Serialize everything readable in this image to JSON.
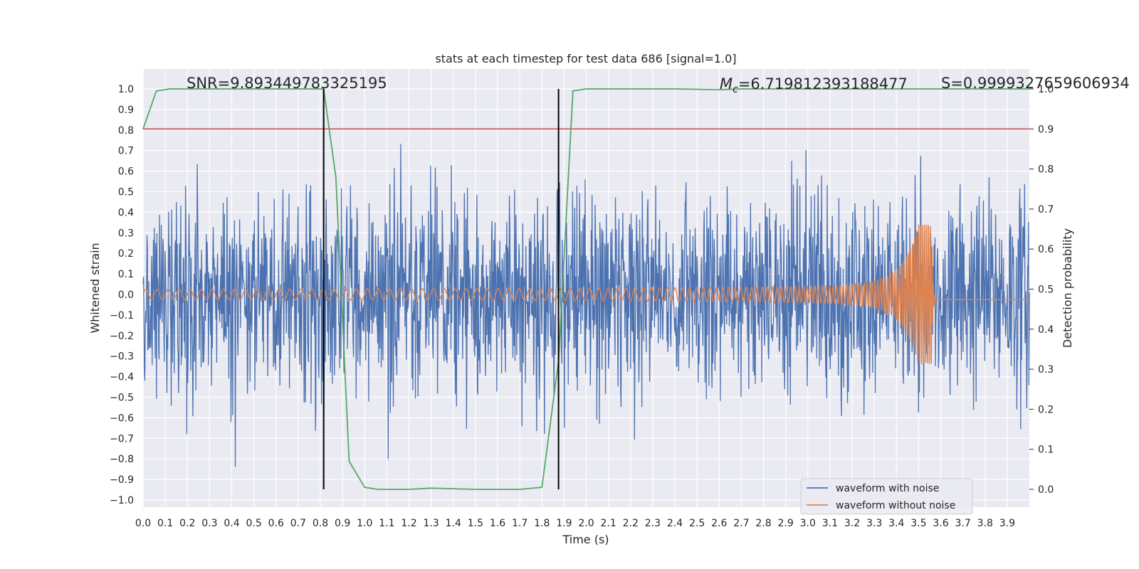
{
  "chart_data": {
    "type": "line",
    "title": "stats at each timestep for test data 686 [signal=1.0]",
    "xlabel": "Time (s)",
    "ylabel": "Whitened strain",
    "y2label": "Detection probability",
    "xlim": [
      0.0,
      4.0
    ],
    "ylim": [
      -1.05,
      1.1
    ],
    "y2lim": [
      -0.05,
      1.0
    ],
    "x_ticks": [
      "0.0",
      "0.1",
      "0.2",
      "0.3",
      "0.4",
      "0.5",
      "0.6",
      "0.7",
      "0.8",
      "0.9",
      "1.0",
      "1.1",
      "1.2",
      "1.3",
      "1.4",
      "1.5",
      "1.6",
      "1.7",
      "1.8",
      "1.9",
      "2.0",
      "2.1",
      "2.2",
      "2.3",
      "2.4",
      "2.5",
      "2.6",
      "2.7",
      "2.8",
      "2.9",
      "3.0",
      "3.1",
      "3.2",
      "3.3",
      "3.4",
      "3.5",
      "3.6",
      "3.7",
      "3.8",
      "3.9"
    ],
    "y_ticks": [
      "1.0",
      "0.9",
      "0.8",
      "0.7",
      "0.6",
      "0.5",
      "0.4",
      "0.3",
      "0.2",
      "0.1",
      "0.0",
      "−0.1",
      "−0.2",
      "−0.3",
      "−0.4",
      "−0.5",
      "−0.6",
      "−0.7",
      "−0.8",
      "−0.9",
      "−1.0"
    ],
    "y2_ticks": [
      "1.0",
      "0.9",
      "0.8",
      "0.7",
      "0.6",
      "0.5",
      "0.4",
      "0.3",
      "0.2",
      "0.1",
      "0.0"
    ],
    "annotations": {
      "snr": "SNR=9.893449783325195",
      "mc_symbol": "M",
      "mc_sub": "c",
      "mc_value": "=6.719812393188477",
      "s": "S=0.9999327659606934"
    },
    "legend": {
      "location": "lower right",
      "entries": [
        "waveform with noise",
        "waveform without noise"
      ]
    },
    "threshold": 0.9,
    "vlines": [
      0.815,
      1.875
    ],
    "series": [
      {
        "name": "waveform with noise",
        "color": "#4c72b0",
        "axis": "left",
        "noise_std": 0.25,
        "samples": 2048,
        "spike_max": 1.0
      },
      {
        "name": "waveform without noise",
        "color": "#dd8452",
        "axis": "left",
        "merger_time": 3.56,
        "base_amplitude": 0.025,
        "peak_amplitude": 0.34,
        "f_start": 20,
        "f_end": 120
      },
      {
        "name": "detection probability",
        "color": "#55a868",
        "axis": "right",
        "x": [
          0.0,
          0.06,
          0.12,
          0.2,
          0.5,
          0.8,
          0.815,
          0.87,
          0.93,
          1.0,
          1.06,
          1.2,
          1.3,
          1.5,
          1.7,
          1.8,
          1.875,
          1.94,
          2.0,
          2.2,
          2.4,
          2.6,
          2.7,
          3.0,
          3.5,
          4.0
        ],
        "y": [
          0.9,
          0.995,
          1.0,
          1.0,
          1.0,
          1.0,
          1.0,
          0.78,
          0.07,
          0.005,
          0.0,
          0.0,
          0.003,
          0.0,
          0.0,
          0.005,
          0.32,
          0.995,
          1.0,
          1.0,
          1.0,
          0.998,
          1.0,
          1.0,
          1.0,
          1.0
        ]
      },
      {
        "name": "threshold",
        "color": "#c44e52",
        "axis": "right",
        "x": [
          0.0,
          4.0
        ],
        "y": [
          0.9,
          0.9
        ]
      }
    ],
    "colors": {
      "background": "#eaeaf2",
      "grid": "#ffffff",
      "vline": "#000000"
    }
  }
}
